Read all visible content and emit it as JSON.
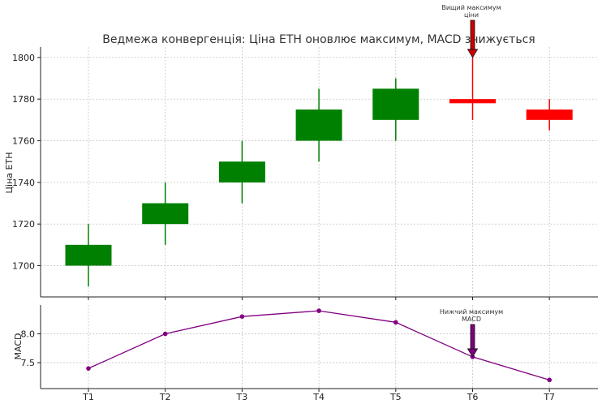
{
  "chart_data": [
    {
      "type": "candlestick",
      "title": "Ведмежа конвергенція: Ціна ETH оновлює максимум, MACD знижується",
      "ylabel": "Ціна ETH",
      "ylim": [
        1685,
        1805
      ],
      "yticks": [
        1700,
        1720,
        1740,
        1760,
        1780,
        1800
      ],
      "grid": true,
      "categories": [
        "T1",
        "T2",
        "T3",
        "T4",
        "T5",
        "T6",
        "T7"
      ],
      "candles": [
        {
          "x": "T1",
          "open": 1700,
          "close": 1710,
          "high": 1720,
          "low": 1690,
          "color": "#008000"
        },
        {
          "x": "T2",
          "open": 1720,
          "close": 1730,
          "high": 1740,
          "low": 1710,
          "color": "#008000"
        },
        {
          "x": "T3",
          "open": 1740,
          "close": 1750,
          "high": 1760,
          "low": 1730,
          "color": "#008000"
        },
        {
          "x": "T4",
          "open": 1760,
          "close": 1775,
          "high": 1785,
          "low": 1750,
          "color": "#008000"
        },
        {
          "x": "T5",
          "open": 1770,
          "close": 1785,
          "high": 1790,
          "low": 1760,
          "color": "#008000"
        },
        {
          "x": "T6",
          "open": 1780,
          "close": 1778,
          "high": 1800,
          "low": 1770,
          "color": "#ff0000"
        },
        {
          "x": "T7",
          "open": 1775,
          "close": 1770,
          "high": 1780,
          "low": 1765,
          "color": "#ff0000"
        }
      ],
      "annotation": {
        "text_line1": "Вищий максимум",
        "text_line2": "ціни",
        "x": "T6",
        "y": 1800,
        "color": "#cc0000"
      }
    },
    {
      "type": "line",
      "ylabel": "MACD",
      "ylim": [
        7.05,
        8.5
      ],
      "yticks": [
        7.5,
        8.0
      ],
      "yticklabels": [
        "7.5",
        "8.0"
      ],
      "grid": true,
      "categories": [
        "T1",
        "T2",
        "T3",
        "T4",
        "T5",
        "T6",
        "T7"
      ],
      "values": [
        7.4,
        8.0,
        8.3,
        8.4,
        8.2,
        7.6,
        7.2
      ],
      "color": "#800080",
      "annotation": {
        "text_line1": "Нижчий максимум",
        "text_line2": "MACD",
        "x": "T6",
        "y": 7.6,
        "color": "#800080"
      }
    }
  ]
}
